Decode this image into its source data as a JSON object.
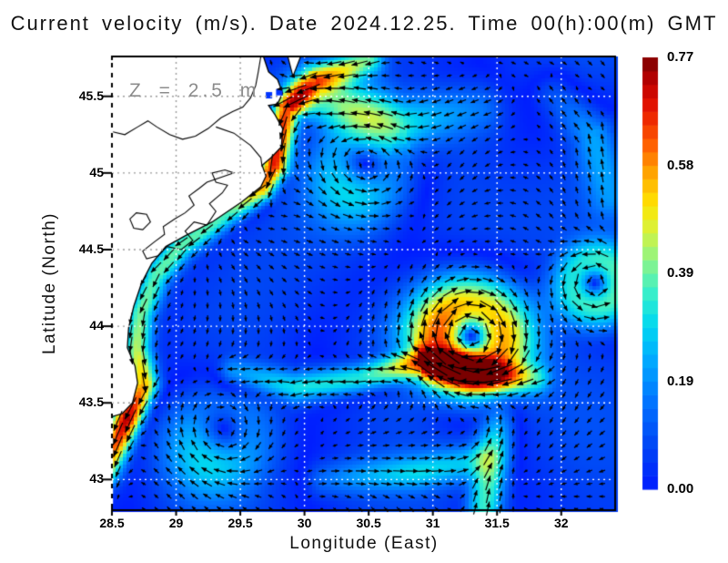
{
  "title": "Current velocity (m/s). Date 2024.12.25. Time 00(h):00(m) GMT",
  "annotation": "Z = 2.5 m",
  "axes": {
    "xlabel": "Longitude (East)",
    "ylabel": "Latitude (North)"
  },
  "colorbar": {
    "min": 0.0,
    "max": 0.77,
    "ticks": [
      "0.77",
      "0.58",
      "0.39",
      "0.19",
      "0.00"
    ],
    "tick_fractions_from_top": [
      0,
      0.25,
      0.5,
      0.75,
      1
    ]
  },
  "chart_data": {
    "type": "heatmap",
    "subtype": "vector-field-speed-map",
    "title": "Current velocity (m/s). Date 2024.12.25. Time 00(h):00(m) GMT",
    "xlabel": "Longitude (East)",
    "ylabel": "Latitude (North)",
    "xlim": [
      28.5,
      32.42
    ],
    "ylim": [
      42.8,
      45.76
    ],
    "xticks": [
      28.5,
      29,
      29.5,
      30,
      30.5,
      31,
      31.5,
      32
    ],
    "yticks": [
      43,
      43.5,
      44,
      44.5,
      45,
      45.5
    ],
    "grid": true,
    "units": "m/s",
    "depth_m": 2.5,
    "speed_range": [
      0,
      0.77
    ],
    "sea_base_color": "#0546f0",
    "land_color": "#ffffff",
    "coast_color": "#000000",
    "grid_color_sea": "#ffffff",
    "grid_color_land": "#9a9a9a",
    "arrow_color": "#000000",
    "colormap": [
      [
        0.0,
        "#001cff"
      ],
      [
        0.1,
        "#0045f5"
      ],
      [
        0.2,
        "#0272ff"
      ],
      [
        0.3,
        "#00aaff"
      ],
      [
        0.38,
        "#00d8f0"
      ],
      [
        0.46,
        "#3cf0c8"
      ],
      [
        0.53,
        "#8cf488"
      ],
      [
        0.6,
        "#d8f23c"
      ],
      [
        0.66,
        "#ffe400"
      ],
      [
        0.73,
        "#ffa800"
      ],
      [
        0.8,
        "#ff5e00"
      ],
      [
        0.88,
        "#e81600"
      ],
      [
        0.94,
        "#c00000"
      ],
      [
        1.0,
        "#7a0000"
      ]
    ],
    "flow_features": {
      "vortices": [
        {
          "name": "anticyclonic-eddy",
          "center": [
            31.29,
            43.93
          ],
          "radius": 0.3,
          "peak": 0.48,
          "rotation": "clockwise"
        },
        {
          "name": "ne-cyclonic-eddy",
          "center": [
            32.27,
            44.28
          ],
          "radius": 0.22,
          "peak": 0.3,
          "rotation": "counterclockwise"
        },
        {
          "name": "nw-meander",
          "center": [
            30.45,
            45.05
          ],
          "radius": 0.3,
          "peak": 0.2,
          "rotation": "counterclockwise"
        },
        {
          "name": "sw-recirculation",
          "center": [
            29.35,
            43.28
          ],
          "radius": 0.3,
          "peak": 0.17,
          "rotation": "clockwise"
        }
      ],
      "jets": [
        {
          "name": "rim-current-coastal-jet",
          "width": 0.1,
          "peak": 0.72,
          "path": [
            [
              30.5,
              45.74
            ],
            [
              30.08,
              45.6
            ],
            [
              29.86,
              45.42
            ],
            [
              29.8,
              45.22
            ],
            [
              29.76,
              45.05
            ],
            [
              29.66,
              44.9
            ],
            [
              29.4,
              44.74
            ],
            [
              29.03,
              44.52
            ],
            [
              28.84,
              44.33
            ],
            [
              28.72,
              44.08
            ],
            [
              28.69,
              43.86
            ],
            [
              28.75,
              43.62
            ],
            [
              28.62,
              43.4
            ],
            [
              28.44,
              43.06
            ]
          ],
          "strength": [
            0.45,
            0.65,
            0.95,
            1.0,
            1.0,
            0.85,
            0.55,
            0.5,
            0.5,
            0.55,
            0.6,
            0.75,
            1.0,
            0.65
          ]
        },
        {
          "name": "westward-jet",
          "width": 0.11,
          "peak": 0.6,
          "path": [
            [
              31.8,
              43.66
            ],
            [
              31.32,
              43.7
            ],
            [
              30.9,
              43.77
            ],
            [
              30.42,
              43.66
            ],
            [
              29.93,
              43.6
            ],
            [
              29.45,
              43.7
            ]
          ],
          "strength": [
            0.45,
            1.0,
            0.95,
            0.6,
            0.5,
            0.4
          ]
        },
        {
          "name": "southern-inflow",
          "width": 0.13,
          "peak": 0.4,
          "path": [
            [
              31.4,
              42.82
            ],
            [
              31.46,
              43.15
            ],
            [
              31.53,
              43.45
            ]
          ],
          "strength": [
            0.9,
            1.0,
            0.5
          ]
        },
        {
          "name": "south-rim-eastward",
          "width": 0.12,
          "peak": 0.26,
          "path": [
            [
              30.15,
              43.0
            ],
            [
              30.9,
              43.05
            ],
            [
              31.35,
              43.12
            ]
          ],
          "strength": [
            0.5,
            0.9,
            0.8
          ]
        },
        {
          "name": "northern-westward-flow",
          "width": 0.18,
          "peak": 0.3,
          "path": [
            [
              31.35,
              45.42
            ],
            [
              30.75,
              45.32
            ],
            [
              30.3,
              45.45
            ],
            [
              30.0,
              45.52
            ]
          ],
          "strength": [
            0.5,
            0.8,
            1.0,
            0.9
          ]
        },
        {
          "name": "ne-corner-flow",
          "width": 0.15,
          "peak": 0.2,
          "path": [
            [
              32.38,
              44.85
            ],
            [
              32.25,
              45.25
            ],
            [
              31.95,
              45.52
            ]
          ],
          "strength": [
            0.7,
            1.0,
            0.7
          ]
        }
      ],
      "background_speed": 0.06
    },
    "map": {
      "coastline": [
        [
          29.68,
          45.76
        ],
        [
          29.72,
          45.66
        ],
        [
          29.79,
          45.61
        ],
        [
          29.83,
          45.52
        ],
        [
          29.79,
          45.45
        ],
        [
          29.72,
          45.44
        ],
        [
          29.77,
          45.38
        ],
        [
          29.83,
          45.29
        ],
        [
          29.82,
          45.17
        ],
        [
          29.74,
          45.1
        ],
        [
          29.67,
          45.05
        ],
        [
          29.7,
          44.98
        ],
        [
          29.66,
          44.91
        ],
        [
          29.51,
          44.81
        ],
        [
          29.28,
          44.68
        ],
        [
          29.07,
          44.59
        ],
        [
          28.92,
          44.52
        ],
        [
          28.81,
          44.41
        ],
        [
          28.73,
          44.28
        ],
        [
          28.67,
          44.13
        ],
        [
          28.63,
          43.99
        ],
        [
          28.62,
          43.86
        ],
        [
          28.68,
          43.74
        ],
        [
          28.7,
          43.63
        ],
        [
          28.66,
          43.5
        ],
        [
          28.58,
          43.43
        ],
        [
          28.5,
          43.41
        ]
      ],
      "border_river": [
        [
          28.5,
          45.27
        ],
        [
          28.6,
          45.25
        ],
        [
          28.7,
          45.3
        ],
        [
          28.78,
          45.34
        ],
        [
          28.85,
          45.3
        ],
        [
          28.95,
          45.25
        ],
        [
          29.05,
          45.22
        ],
        [
          29.15,
          45.24
        ],
        [
          29.25,
          45.29
        ],
        [
          29.35,
          45.36
        ],
        [
          29.44,
          45.4
        ],
        [
          29.52,
          45.43
        ],
        [
          29.58,
          45.49
        ],
        [
          29.62,
          45.57
        ],
        [
          29.64,
          45.66
        ],
        [
          29.66,
          45.76
        ]
      ],
      "border_branch": [
        [
          29.31,
          45.3
        ],
        [
          29.45,
          45.26
        ],
        [
          29.58,
          45.18
        ],
        [
          29.66,
          45.1
        ],
        [
          29.67,
          45.04
        ]
      ],
      "lagoons": [
        [
          [
            29.45,
            45.0
          ],
          [
            29.38,
            45.02
          ],
          [
            29.28,
            45.0
          ],
          [
            29.31,
            44.94
          ],
          [
            29.4,
            44.92
          ],
          [
            29.36,
            44.87
          ],
          [
            29.26,
            44.8
          ],
          [
            29.31,
            44.75
          ],
          [
            29.24,
            44.66
          ],
          [
            29.14,
            44.68
          ],
          [
            29.07,
            44.62
          ],
          [
            29.13,
            44.56
          ],
          [
            29.04,
            44.5
          ],
          [
            28.93,
            44.52
          ],
          [
            28.86,
            44.46
          ],
          [
            28.77,
            44.44
          ],
          [
            28.74,
            44.49
          ],
          [
            28.83,
            44.55
          ],
          [
            28.91,
            44.6
          ],
          [
            28.9,
            44.65
          ],
          [
            28.99,
            44.7
          ],
          [
            29.07,
            44.74
          ],
          [
            29.14,
            44.79
          ],
          [
            29.1,
            44.85
          ],
          [
            29.18,
            44.9
          ],
          [
            29.24,
            44.94
          ]
        ],
        [
          [
            28.69,
            44.74
          ],
          [
            28.77,
            44.73
          ],
          [
            28.8,
            44.68
          ],
          [
            28.74,
            44.63
          ],
          [
            28.67,
            44.64
          ],
          [
            28.64,
            44.7
          ]
        ]
      ],
      "islands": [
        [
          [
            29.87,
            45.76
          ],
          [
            29.97,
            45.76
          ],
          [
            29.91,
            45.63
          ]
        ]
      ],
      "lake_cells": [
        [
          29.72,
          45.51
        ],
        [
          29.8,
          45.53
        ]
      ],
      "lake_cell_color": "#0033ff"
    }
  }
}
